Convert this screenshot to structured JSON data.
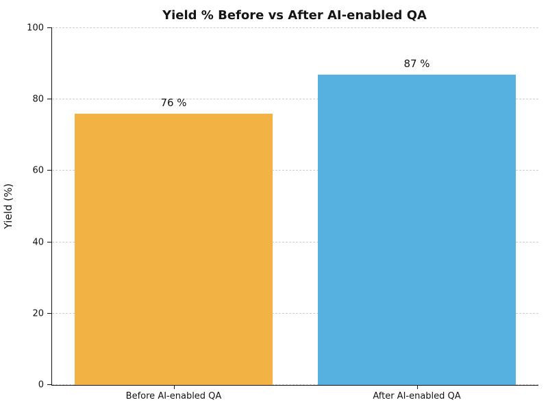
{
  "chart_data": {
    "type": "bar",
    "title": "Yield % Before vs After AI-enabled QA",
    "xlabel": "",
    "ylabel": "Yield (%)",
    "categories": [
      "Before AI-enabled QA",
      "After AI-enabled QA"
    ],
    "values": [
      76,
      87
    ],
    "value_labels": [
      "76 %",
      "87 %"
    ],
    "bar_colors": [
      "#F2B344",
      "#56B1E0"
    ],
    "ylim": [
      0,
      100
    ],
    "yticks": [
      0,
      20,
      40,
      60,
      80,
      100
    ],
    "grid": "horizontal-dashed",
    "gridline_color": "#cccccc",
    "legend_position": "none",
    "spines": [
      "left",
      "bottom"
    ]
  }
}
